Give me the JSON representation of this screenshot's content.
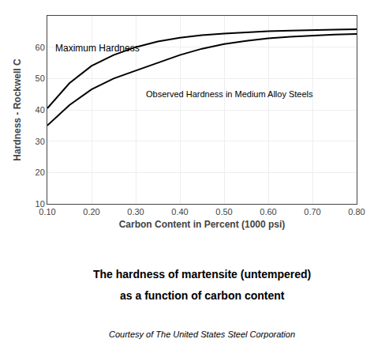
{
  "chart_data": {
    "type": "line",
    "title": "The hardness of martensite (untempered)",
    "subtitle": "as a function of carbon content",
    "x_label": "Carbon Content in Percent (1000 psi)",
    "y_label": "Hardness - Rockwell C",
    "x": [
      0.1,
      0.15,
      0.2,
      0.25,
      0.3,
      0.35,
      0.4,
      0.45,
      0.5,
      0.55,
      0.6,
      0.65,
      0.7,
      0.75,
      0.8
    ],
    "series": [
      {
        "color": "#000000",
        "values": [
          40.5,
          48.5,
          54.0,
          57.5,
          60.0,
          61.8,
          63.0,
          63.8,
          64.3,
          64.7,
          65.1,
          65.3,
          65.5,
          65.6,
          65.7
        ]
      },
      {
        "color": "#000000",
        "values": [
          35.0,
          41.5,
          46.5,
          50.0,
          52.5,
          55.0,
          57.5,
          59.5,
          61.0,
          62.0,
          62.8,
          63.3,
          63.7,
          64.0,
          64.2
        ]
      }
    ],
    "xlim": [
      0.1,
      0.8
    ],
    "ylim": [
      10,
      70
    ],
    "xticks": [
      {
        "value": 0.1,
        "label": "0.10"
      },
      {
        "value": 0.2,
        "label": "0.20"
      },
      {
        "value": 0.3,
        "label": "0.30"
      },
      {
        "value": 0.4,
        "label": "0.40"
      },
      {
        "value": 0.5,
        "label": "0.50"
      },
      {
        "value": 0.6,
        "label": "0.60"
      },
      {
        "value": 0.7,
        "label": "0.70"
      },
      {
        "value": 0.8,
        "label": "0.80"
      }
    ],
    "yticks": [
      10,
      20,
      30,
      40,
      50,
      60
    ],
    "grid": true,
    "annotations": [
      {
        "text": "Maximum Hardness",
        "x": 0.115,
        "y": 57.5
      },
      {
        "text": "Observed Hardness in Medium Alloy Steels",
        "x": 0.32,
        "y": 47.0
      },
      {
        "text": "Courtesy of The United States Steel Corporation"
      }
    ]
  }
}
